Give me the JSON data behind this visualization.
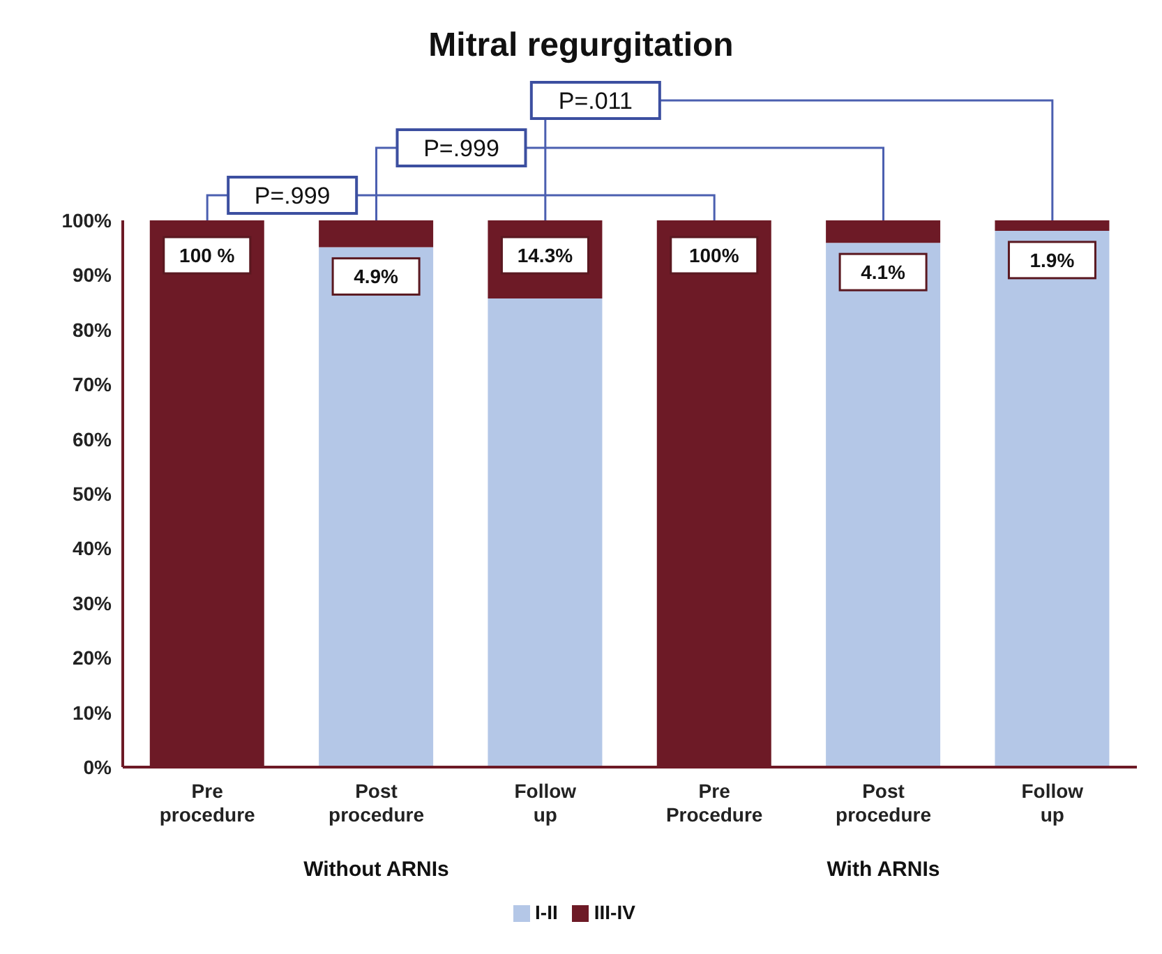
{
  "chart_data": {
    "type": "bar",
    "title": "Mitral regurgitation",
    "stacked": true,
    "categories": [
      "Pre procedure",
      "Post procedure",
      "Follow up",
      "Pre Procedure",
      "Post procedure",
      "Follow up"
    ],
    "series": [
      {
        "name": "I-II",
        "color": "#b4c7e7",
        "values": [
          0,
          95.1,
          85.7,
          0,
          95.9,
          98.1
        ]
      },
      {
        "name": "III-IV",
        "color": "#6d1a26",
        "values": [
          100,
          4.9,
          14.3,
          100,
          4.1,
          1.9
        ],
        "value_labels": [
          "100 %",
          "4.9%",
          "14.3%",
          "100%",
          "4.1%",
          "1.9%"
        ]
      }
    ],
    "ylim": [
      0,
      100
    ],
    "yticks": [
      {
        "value": 0,
        "label": "0%"
      },
      {
        "value": 10,
        "label": "10%"
      },
      {
        "value": 20,
        "label": "20%"
      },
      {
        "value": 30,
        "label": "30%"
      },
      {
        "value": 40,
        "label": "40%"
      },
      {
        "value": 50,
        "label": "50%"
      },
      {
        "value": 60,
        "label": "60%"
      },
      {
        "value": 70,
        "label": "70%"
      },
      {
        "value": 80,
        "label": "80%"
      },
      {
        "value": 90,
        "label": "90%"
      },
      {
        "value": 100,
        "label": "100%"
      }
    ],
    "annotations": [
      "P=.999",
      "P=.999",
      "P=.011",
      "Without ARNIs",
      "With ARNIs"
    ],
    "legend": "bottom",
    "grid": false
  }
}
